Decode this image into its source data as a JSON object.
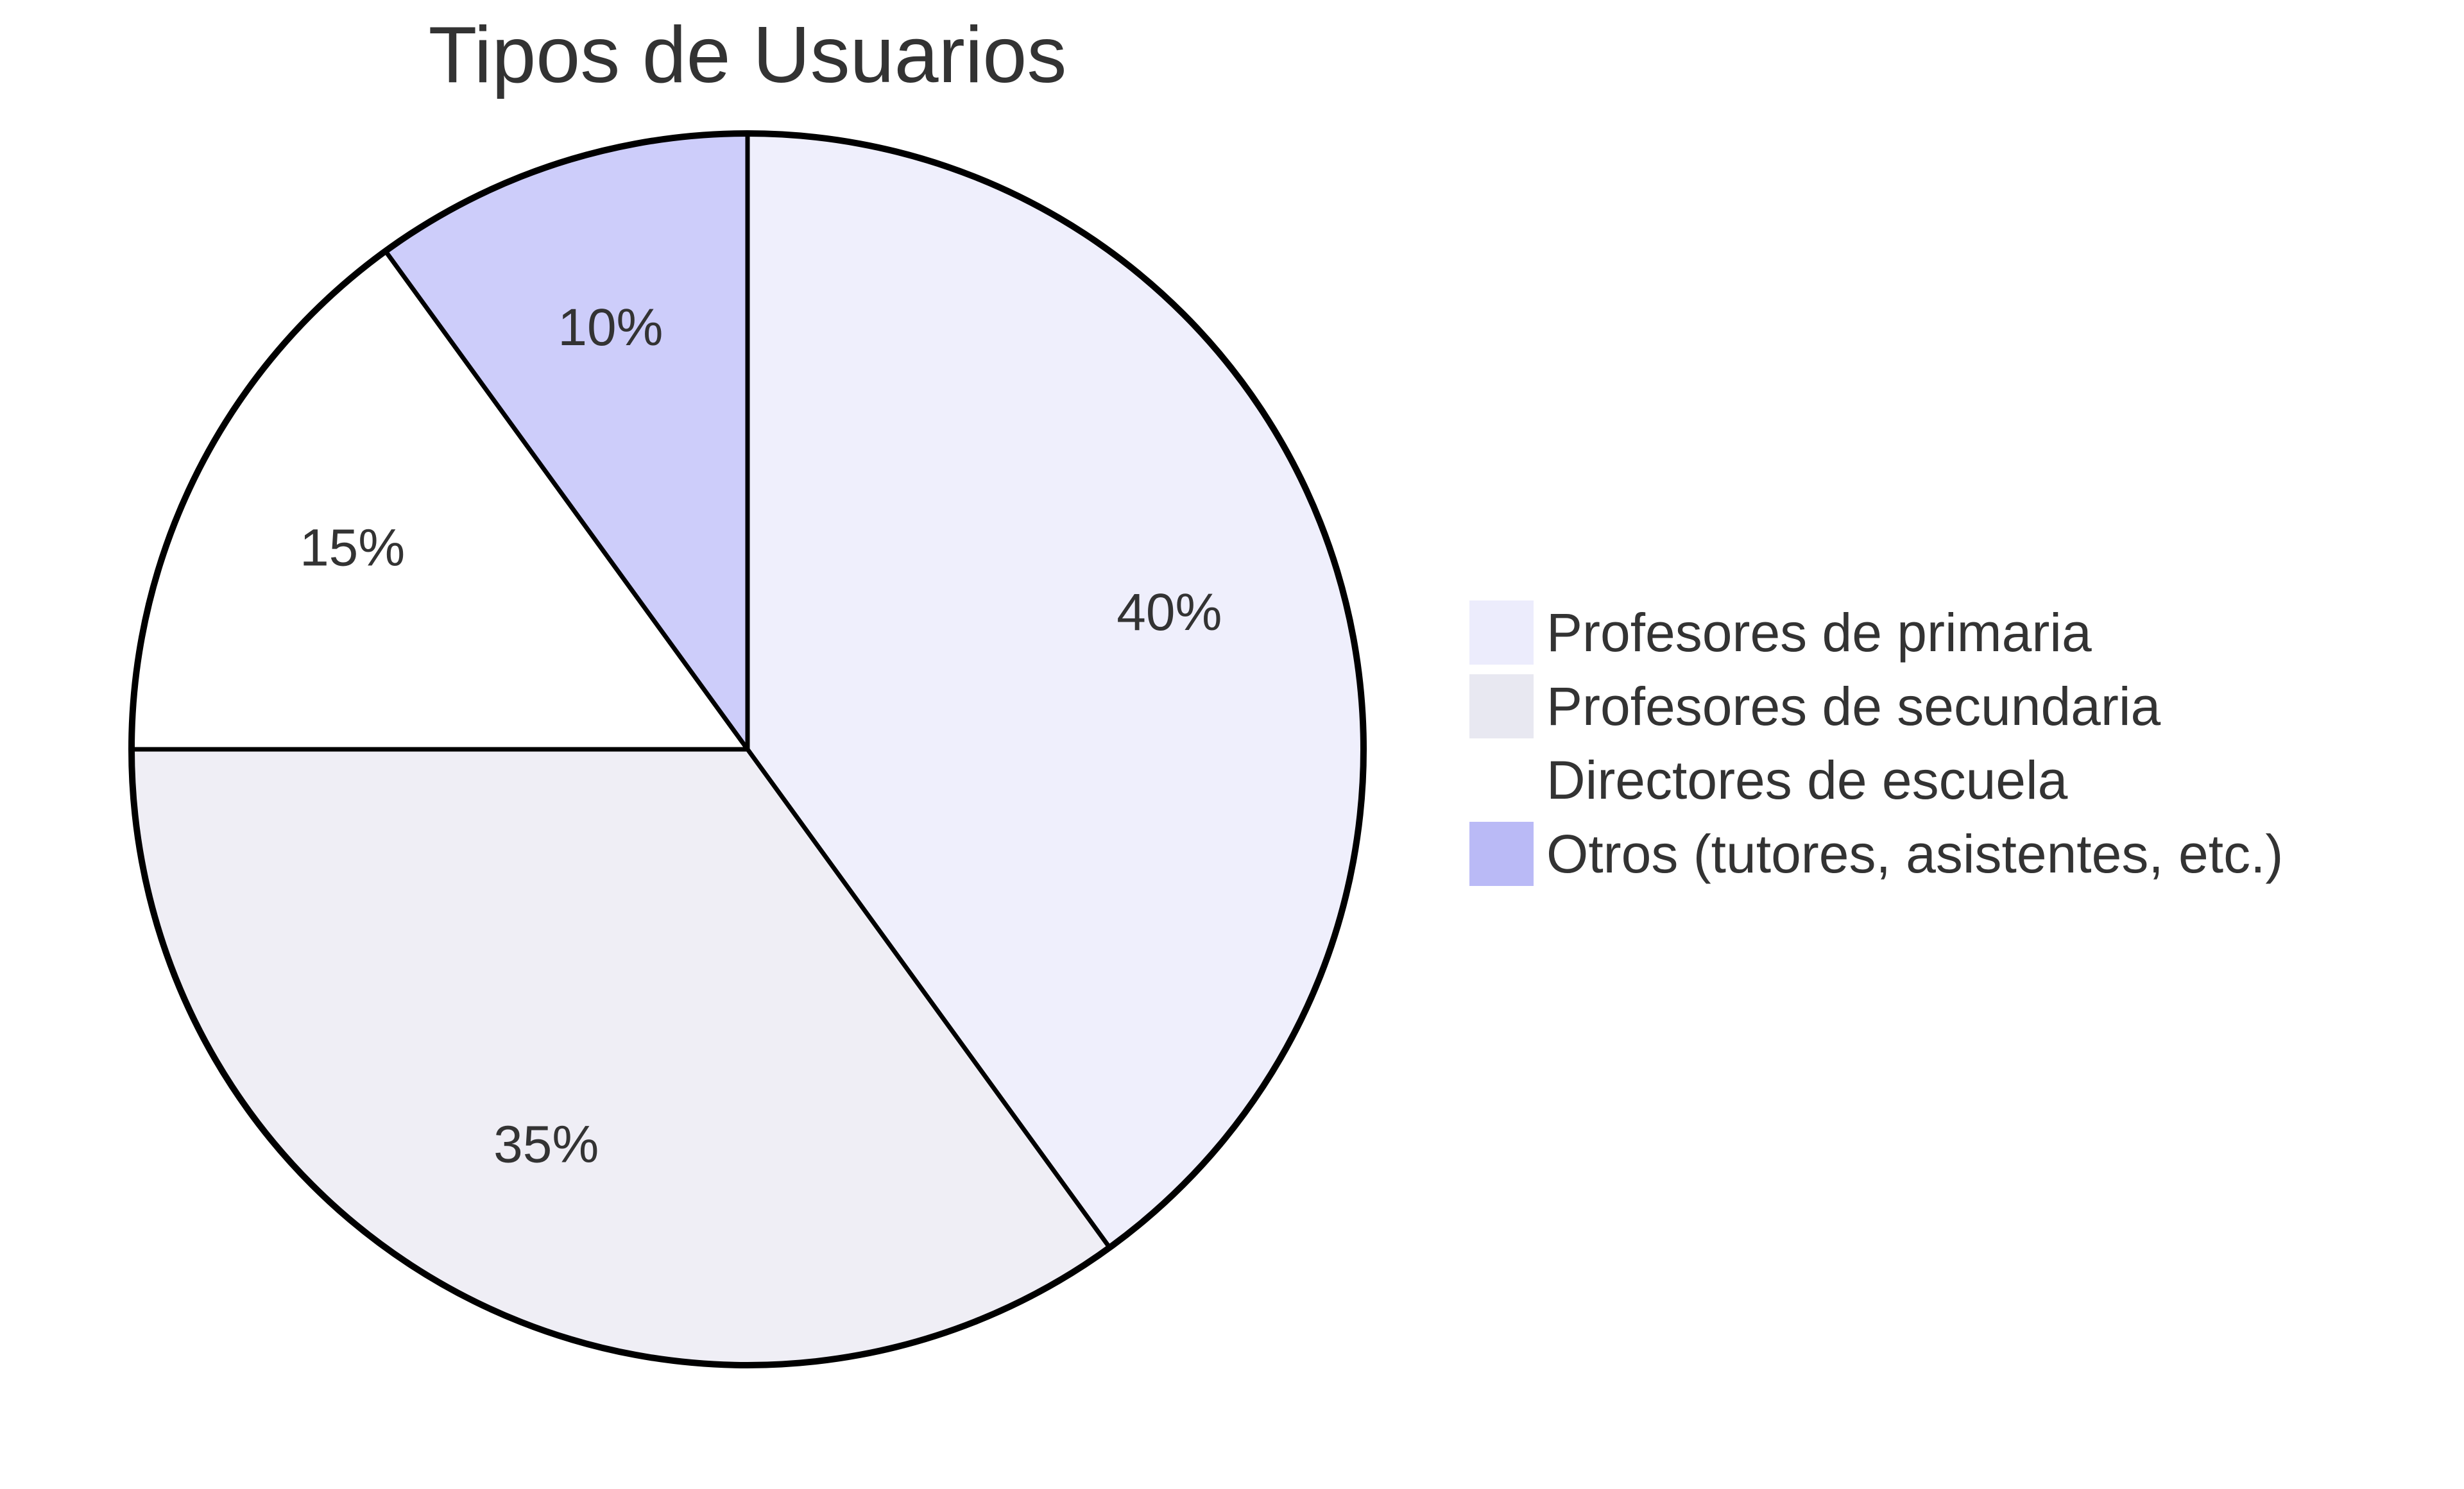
{
  "chart_data": {
    "type": "pie",
    "title": "Tipos de Usuarios",
    "slices": [
      {
        "name": "Profesores de primaria",
        "value": 40,
        "label": "40%",
        "color": "#efeffc"
      },
      {
        "name": "Profesores de secundaria",
        "value": 35,
        "label": "35%",
        "color": "#efeef5"
      },
      {
        "name": "Directores de escuela",
        "value": 15,
        "label": "15%",
        "color": "#ffffff"
      },
      {
        "name": "Otros (tutores, asistentes, etc.)",
        "value": 10,
        "label": "10%",
        "color": "#cdcdfa"
      }
    ],
    "legend_colors": [
      "#ececfc",
      "#e8e8f1",
      "#ffffff",
      "#babaf6"
    ],
    "start_angle": "12 o'clock",
    "direction": "clockwise",
    "legend_position": "right"
  }
}
